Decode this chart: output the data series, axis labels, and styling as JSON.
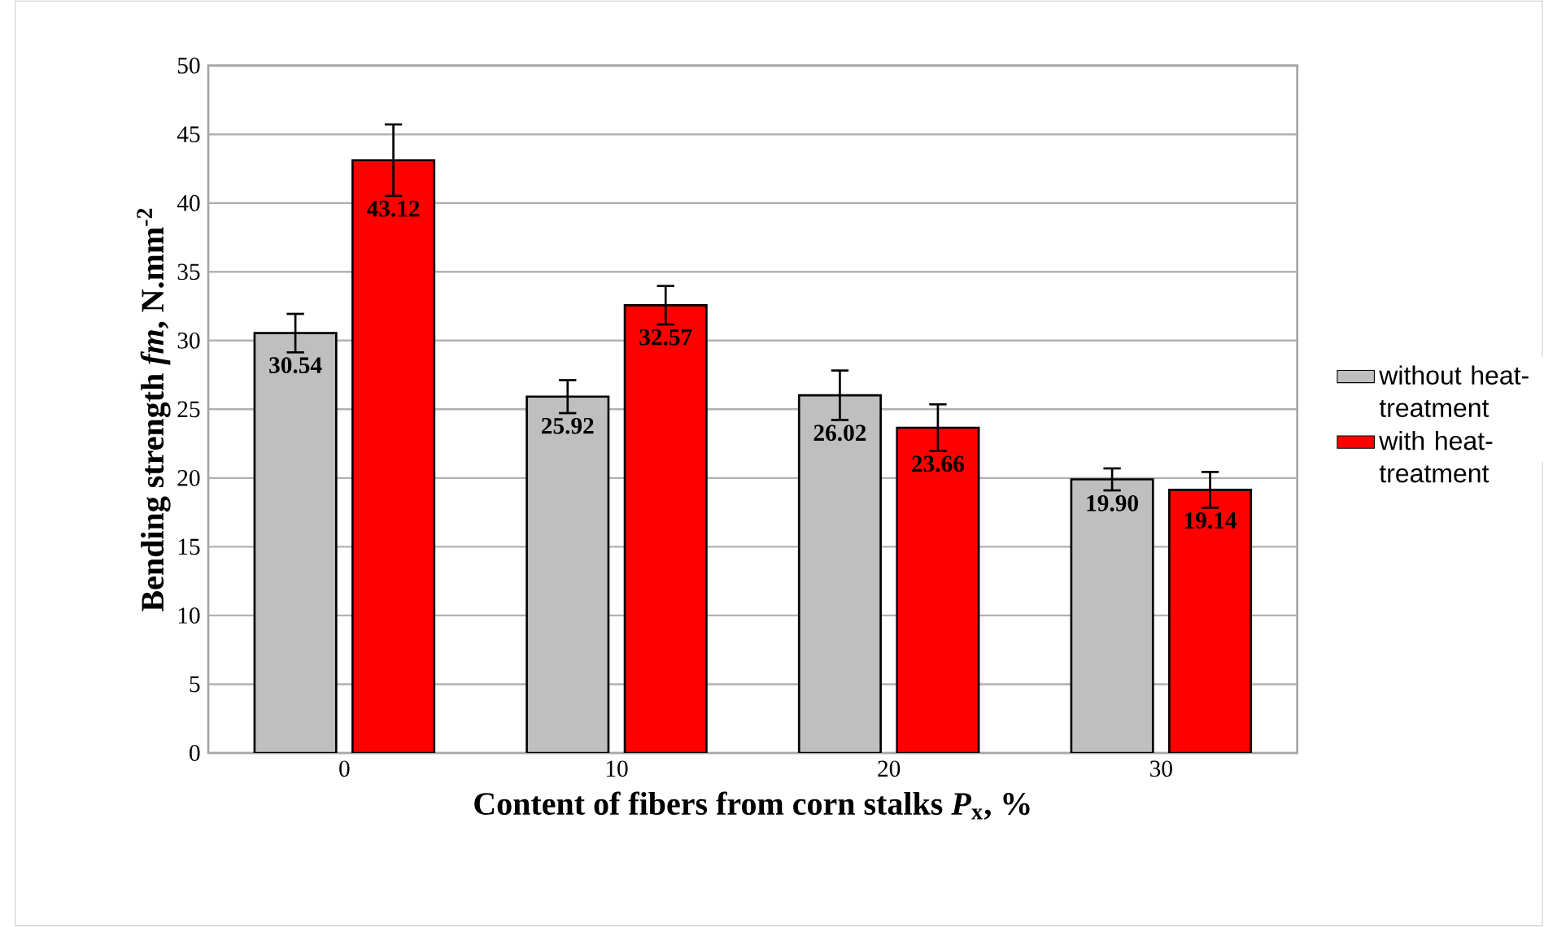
{
  "chart_data": {
    "type": "bar",
    "xlabel": "Content of fibers from corn stalks *P*$_{x}$, %",
    "ylabel": "Bending strength *fm*, N.mm$^{-2}$",
    "categories": [
      "0",
      "10",
      "20",
      "30"
    ],
    "series": [
      {
        "name": "without heat-treatment",
        "color": "#bfbfbf",
        "values": [
          30.54,
          25.92,
          26.02,
          19.9
        ],
        "value_labels": [
          "30.54",
          "25.92",
          "26.02",
          "19.90"
        ],
        "errors": [
          1.4,
          1.2,
          1.8,
          0.8
        ]
      },
      {
        "name": "with heat-treatment",
        "color": "#ff0000",
        "values": [
          43.12,
          32.57,
          23.66,
          19.14
        ],
        "value_labels": [
          "43.12",
          "32.57",
          "23.66",
          "19.14"
        ],
        "errors": [
          2.6,
          1.4,
          1.7,
          1.3
        ]
      }
    ],
    "ylim": [
      0,
      50
    ],
    "yticks": [
      0,
      5,
      10,
      15,
      20,
      25,
      30,
      35,
      40,
      45,
      50
    ],
    "grid": "y",
    "legend": "right"
  }
}
